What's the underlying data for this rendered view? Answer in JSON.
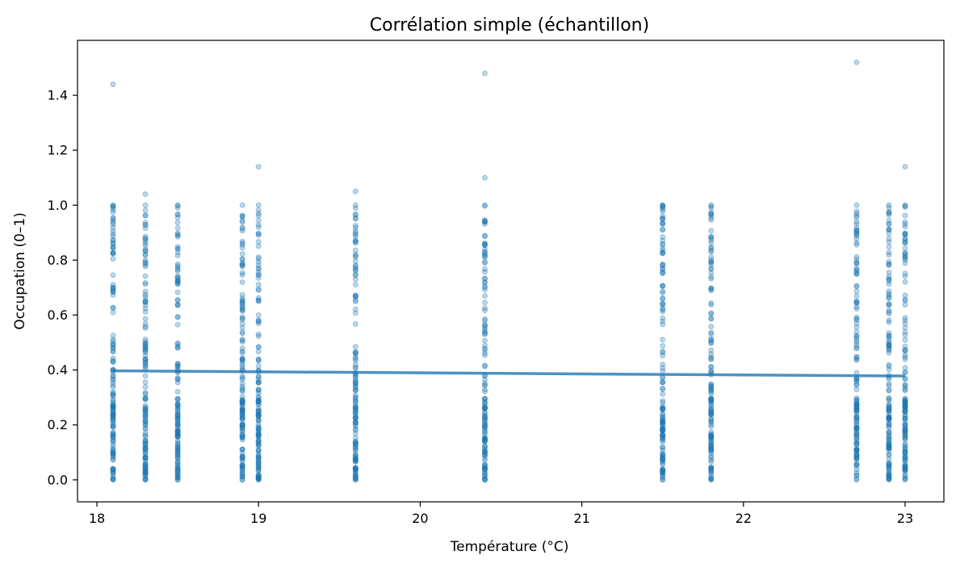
{
  "chart_data": {
    "type": "scatter",
    "title": "Corrélation simple (échantillon)",
    "xlabel": "Température (°C)",
    "ylabel": "Occupation (0–1)",
    "xlim": [
      17.88,
      23.24
    ],
    "ylim": [
      -0.08,
      1.6
    ],
    "x_ticks": [
      18,
      19,
      20,
      21,
      22,
      23
    ],
    "y_ticks": [
      0.0,
      0.2,
      0.4,
      0.6,
      0.8,
      1.0,
      1.2,
      1.4
    ],
    "x_tick_labels": [
      "18",
      "19",
      "20",
      "21",
      "22",
      "23"
    ],
    "y_tick_labels": [
      "0.0",
      "0.2",
      "0.4",
      "0.6",
      "0.8",
      "1.0",
      "1.2",
      "1.4"
    ],
    "grid": false,
    "point_color": "#1f77b4",
    "line_color": "#1f77b4",
    "temperature_groups": [
      18.1,
      18.3,
      18.5,
      18.9,
      19.0,
      19.6,
      20.4,
      21.5,
      21.8,
      22.7,
      22.9,
      23.0
    ],
    "occupation_range_per_group": [
      0.0,
      1.0
    ],
    "outliers": [
      {
        "x": 18.1,
        "y": 1.44
      },
      {
        "x": 18.3,
        "y": 1.04
      },
      {
        "x": 19.0,
        "y": 1.14
      },
      {
        "x": 19.6,
        "y": 1.05
      },
      {
        "x": 20.4,
        "y": 1.48
      },
      {
        "x": 20.4,
        "y": 1.1
      },
      {
        "x": 22.7,
        "y": 1.52
      },
      {
        "x": 23.0,
        "y": 1.14
      }
    ],
    "regression_line": {
      "x": [
        18.1,
        23.0
      ],
      "y": [
        0.397,
        0.378
      ]
    }
  }
}
